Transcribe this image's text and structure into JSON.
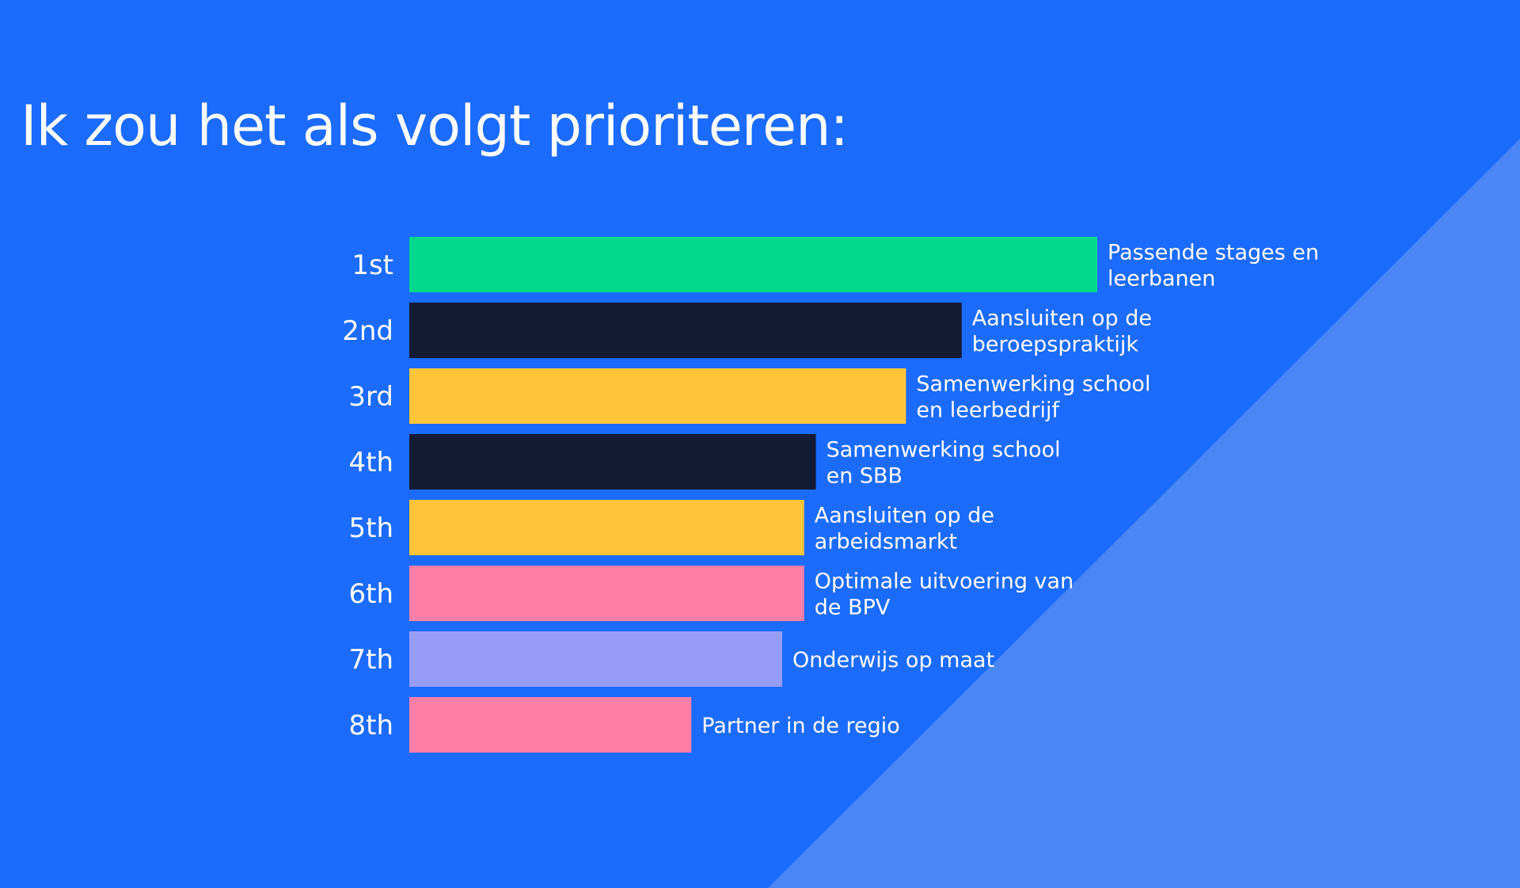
{
  "title": "Ik zou het als volgt prioriteren:",
  "colors": {
    "background": "#1b6bff",
    "diagonal_panel": "#4a86f5",
    "green": "#00d88c",
    "navy": "#131a33",
    "yellow": "#ffc43a",
    "pink": "#ff7fa8",
    "lavender": "#979df7"
  },
  "chart_data": {
    "type": "bar",
    "orientation": "horizontal",
    "title": "Ik zou het als volgt prioriteren:",
    "categories": [
      "1st",
      "2nd",
      "3rd",
      "4th",
      "5th",
      "6th",
      "7th",
      "8th"
    ],
    "labels": [
      [
        "Passende stages en",
        "leerbanen"
      ],
      [
        "Aansluiten op de",
        "beroepspraktijk"
      ],
      [
        "Samenwerking school",
        "en leerbedrijf"
      ],
      [
        "Samenwerking school",
        "en SBB"
      ],
      [
        "Aansluiten op de",
        "arbeidsmarkt"
      ],
      [
        "Optimale uitvoering van",
        "de BPV"
      ],
      [
        "Onderwijs op maat"
      ],
      [
        "Partner in de regio"
      ]
    ],
    "values": [
      1.0,
      0.803,
      0.722,
      0.591,
      0.574,
      0.574,
      0.542,
      0.41
    ],
    "colors": [
      "#00d88c",
      "#131a33",
      "#ffc43a",
      "#131a33",
      "#ffc43a",
      "#ff7fa8",
      "#979df7",
      "#ff7fa8"
    ],
    "grid": false,
    "legend": "none"
  }
}
